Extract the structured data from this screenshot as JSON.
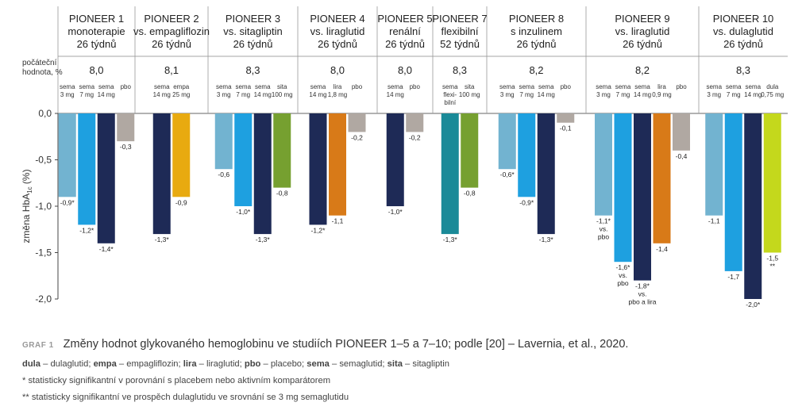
{
  "chart_data": {
    "type": "bar",
    "ylabel_main": "změna HbA",
    "ylabel_sub": "1c",
    "ylabel_unit": " (%)",
    "ylim": [
      -2.0,
      0.0
    ],
    "yticks": [
      0.0,
      -0.5,
      -1.0,
      -1.5,
      -2.0
    ],
    "ytick_labels": [
      "0,0",
      "-0,5",
      "-1,0",
      "-1,5",
      "-2,0"
    ],
    "baseline_label": [
      "počáteční",
      "hodnota, %"
    ],
    "grid": false,
    "series_colors": {
      "sema3": "#72b3d0",
      "sema7": "#1ea0e0",
      "sema14": "#1e2a56",
      "pbo": "#b0a8a2",
      "empa": "#e8aa10",
      "sita": "#76a030",
      "lira": "#d87a18",
      "flexi": "#1a8a98",
      "dula": "#c4d81c"
    },
    "groups": [
      {
        "title": [
          "PIONEER 1",
          "monoterapie",
          "26 týdnů"
        ],
        "baseline": "8,0",
        "bars": [
          {
            "label": [
              "sema",
              "3 mg"
            ],
            "series": "sema3",
            "value": -0.9,
            "value_label": [
              "-0,9*"
            ]
          },
          {
            "label": [
              "sema",
              "7 mg"
            ],
            "series": "sema7",
            "value": -1.2,
            "value_label": [
              "-1,2*"
            ]
          },
          {
            "label": [
              "sema",
              "14 mg"
            ],
            "series": "sema14",
            "value": -1.4,
            "value_label": [
              "-1,4*"
            ]
          },
          {
            "label": [
              "pbo"
            ],
            "series": "pbo",
            "value": -0.3,
            "value_label": [
              "-0,3"
            ]
          }
        ]
      },
      {
        "title": [
          "PIONEER 2",
          "vs. empagliflozin",
          "26 týdnů"
        ],
        "baseline": "8,1",
        "bars": [
          {
            "label": [
              "sema",
              "14 mg"
            ],
            "series": "sema14",
            "value": -1.3,
            "value_label": [
              "-1,3*"
            ]
          },
          {
            "label": [
              "empa",
              "25 mg"
            ],
            "series": "empa",
            "value": -0.9,
            "value_label": [
              "-0,9"
            ]
          }
        ]
      },
      {
        "title": [
          "PIONEER 3",
          "vs. sitagliptin",
          "26 týdnů"
        ],
        "baseline": "8,3",
        "bars": [
          {
            "label": [
              "sema",
              "3 mg"
            ],
            "series": "sema3",
            "value": -0.6,
            "value_label": [
              "-0,6"
            ]
          },
          {
            "label": [
              "sema",
              "7 mg"
            ],
            "series": "sema7",
            "value": -1.0,
            "value_label": [
              "-1,0*"
            ]
          },
          {
            "label": [
              "sema",
              "14 mg"
            ],
            "series": "sema14",
            "value": -1.3,
            "value_label": [
              "-1,3*"
            ]
          },
          {
            "label": [
              "sita",
              "100 mg"
            ],
            "series": "sita",
            "value": -0.8,
            "value_label": [
              "-0,8"
            ]
          }
        ]
      },
      {
        "title": [
          "PIONEER 4",
          "vs. liraglutid",
          "26 týdnů"
        ],
        "baseline": "8,0",
        "bars": [
          {
            "label": [
              "sema",
              "14 mg"
            ],
            "series": "sema14",
            "value": -1.2,
            "value_label": [
              "-1,2*"
            ]
          },
          {
            "label": [
              "lira",
              "1,8 mg"
            ],
            "series": "lira",
            "value": -1.1,
            "value_label": [
              "-1,1"
            ]
          },
          {
            "label": [
              "pbo"
            ],
            "series": "pbo",
            "value": -0.2,
            "value_label": [
              "-0,2"
            ]
          }
        ]
      },
      {
        "title": [
          "PIONEER 5",
          "renální",
          "26 týdnů"
        ],
        "baseline": "8,0",
        "bars": [
          {
            "label": [
              "sema",
              "14 mg"
            ],
            "series": "sema14",
            "value": -1.0,
            "value_label": [
              "-1,0*"
            ]
          },
          {
            "label": [
              "pbo"
            ],
            "series": "pbo",
            "value": -0.2,
            "value_label": [
              "-0,2"
            ]
          }
        ]
      },
      {
        "title": [
          "PIONEER 7",
          "flexibilní",
          "52 týdnů"
        ],
        "baseline": "8,3",
        "bars": [
          {
            "label": [
              "sema",
              "flexi-",
              "bilní"
            ],
            "series": "flexi",
            "value": -1.3,
            "value_label": [
              "-1,3*"
            ]
          },
          {
            "label": [
              "sita",
              "100 mg"
            ],
            "series": "sita",
            "value": -0.8,
            "value_label": [
              "-0,8"
            ]
          }
        ]
      },
      {
        "title": [
          "PIONEER 8",
          "s inzulinem",
          "26 týdnů"
        ],
        "baseline": "8,2",
        "bars": [
          {
            "label": [
              "sema",
              "3 mg"
            ],
            "series": "sema3",
            "value": -0.6,
            "value_label": [
              "-0,6*"
            ]
          },
          {
            "label": [
              "sema",
              "7 mg"
            ],
            "series": "sema7",
            "value": -0.9,
            "value_label": [
              "-0,9*"
            ]
          },
          {
            "label": [
              "sema",
              "14 mg"
            ],
            "series": "sema14",
            "value": -1.3,
            "value_label": [
              "-1,3*"
            ]
          },
          {
            "label": [
              "pbo"
            ],
            "series": "pbo",
            "value": -0.1,
            "value_label": [
              "-0,1"
            ]
          }
        ]
      },
      {
        "title": [
          "PIONEER 9",
          "vs. liraglutid",
          "26 týdnů"
        ],
        "baseline": "8,2",
        "bars": [
          {
            "label": [
              "sema",
              "3 mg"
            ],
            "series": "sema3",
            "value": -1.1,
            "value_label": [
              "-1,1*",
              "vs.",
              "pbo"
            ]
          },
          {
            "label": [
              "sema",
              "7 mg"
            ],
            "series": "sema7",
            "value": -1.6,
            "value_label": [
              "-1,6*",
              "vs.",
              "pbo"
            ]
          },
          {
            "label": [
              "sema",
              "14 mg"
            ],
            "series": "sema14",
            "value": -1.8,
            "value_label": [
              "-1,8*",
              "vs.",
              "pbo a lira"
            ]
          },
          {
            "label": [
              "lira",
              "0,9 mg"
            ],
            "series": "lira",
            "value": -1.4,
            "value_label": [
              "-1,4"
            ]
          },
          {
            "label": [
              "pbo"
            ],
            "series": "pbo",
            "value": -0.4,
            "value_label": [
              "-0,4"
            ]
          }
        ]
      },
      {
        "title": [
          "PIONEER 10",
          "vs. dulaglutid",
          "26 týdnů"
        ],
        "baseline": "8,3",
        "bars": [
          {
            "label": [
              "sema",
              "3 mg"
            ],
            "series": "sema3",
            "value": -1.1,
            "value_label": [
              "-1,1"
            ]
          },
          {
            "label": [
              "sema",
              "7 mg"
            ],
            "series": "sema7",
            "value": -1.7,
            "value_label": [
              "-1,7"
            ]
          },
          {
            "label": [
              "sema",
              "14 mg"
            ],
            "series": "sema14",
            "value": -2.0,
            "value_label": [
              "-2,0*"
            ]
          },
          {
            "label": [
              "dula",
              "0,75 mg"
            ],
            "series": "dula",
            "value": -1.5,
            "value_label": [
              "-1,5",
              "**"
            ]
          }
        ]
      }
    ]
  },
  "caption": {
    "tag": "GRAF 1",
    "title": "Změny hodnot glykovaného hemoglobinu ve studiích PIONEER 1–5 a 7–10; podle [20] – Lavernia, et al., 2020.",
    "legend": [
      {
        "abbr": "dula",
        "text": " – dulaglutid; "
      },
      {
        "abbr": "empa",
        "text": " – empagliflozin; "
      },
      {
        "abbr": "lira",
        "text": " – liraglutid; "
      },
      {
        "abbr": "pbo",
        "text": " – placebo; "
      },
      {
        "abbr": "sema",
        "text": " – semaglutid; "
      },
      {
        "abbr": "sita",
        "text": " – sitagliptin"
      }
    ],
    "note1": "* statisticky signifikantní v porovnání s placebem nebo aktivním komparátorem",
    "note2": "** statisticky signifikantní ve prospěch dulaglutidu ve srovnání se 3 mg semaglutidu"
  }
}
